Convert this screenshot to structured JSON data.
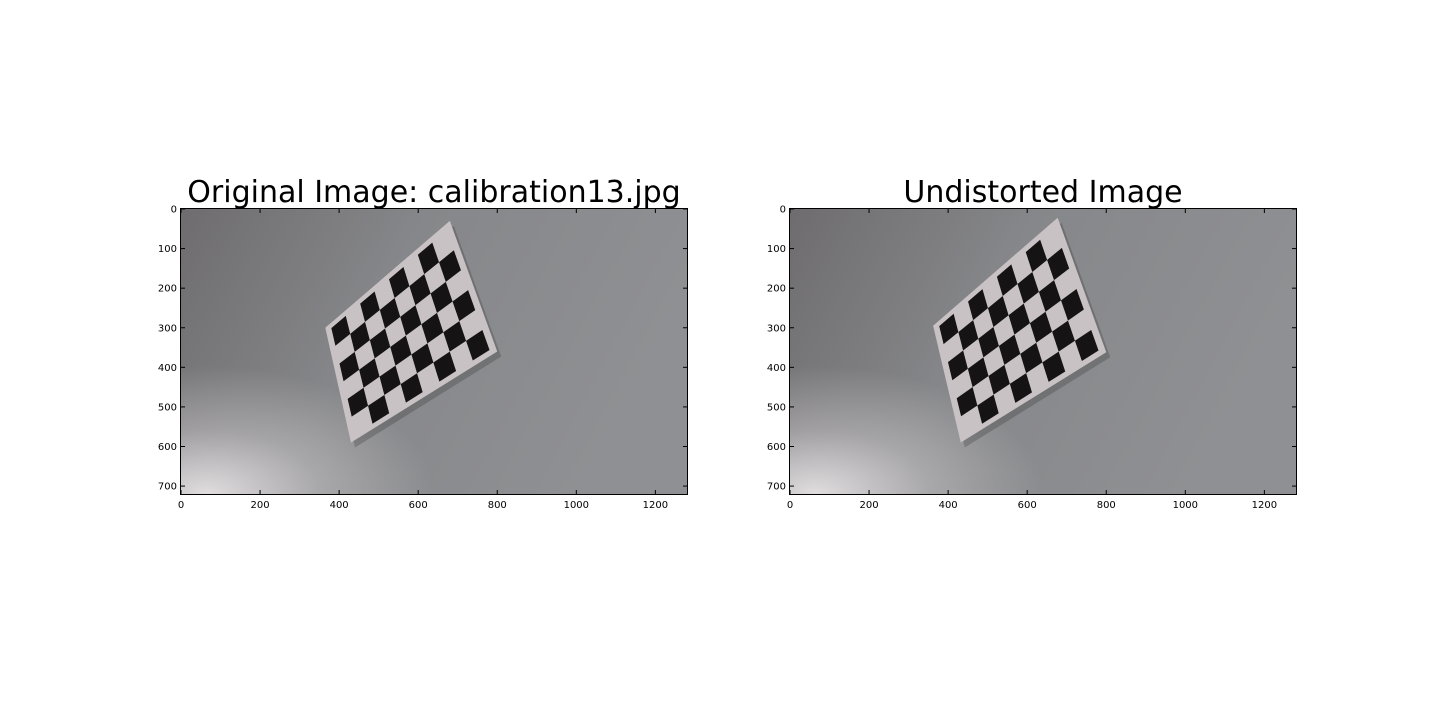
{
  "figure": {
    "panels": [
      {
        "title": "Original Image: calibration13.jpg",
        "image_size": [
          1280,
          720
        ],
        "x_ticks": [
          0,
          200,
          400,
          600,
          800,
          1000,
          1200
        ],
        "y_ticks": [
          0,
          100,
          200,
          300,
          400,
          500,
          600,
          700
        ],
        "board_corners": [
          [
            365,
            300
          ],
          [
            680,
            30
          ],
          [
            800,
            360
          ],
          [
            430,
            590
          ]
        ]
      },
      {
        "title": "Undistorted Image",
        "image_size": [
          1280,
          720
        ],
        "x_ticks": [
          0,
          200,
          400,
          600,
          800,
          1000,
          1200
        ],
        "y_ticks": [
          0,
          100,
          200,
          300,
          400,
          500,
          600,
          700
        ],
        "board_corners": [
          [
            362,
            295
          ],
          [
            677,
            22
          ],
          [
            800,
            362
          ],
          [
            432,
            590
          ]
        ]
      }
    ]
  },
  "colors": {
    "wall_dark": "#6e6c6f",
    "wall_mid": "#86878a",
    "wall_light": "#8f9093",
    "highlight": "#e6e2e4",
    "paper": "#c9c2c5",
    "square": "#151314"
  }
}
